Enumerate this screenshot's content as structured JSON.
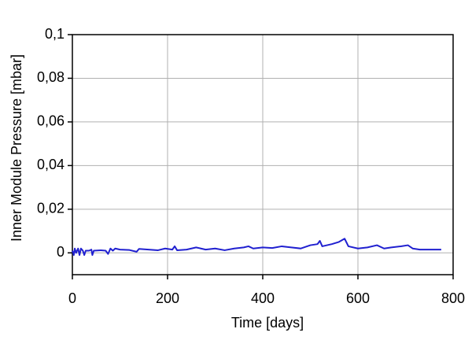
{
  "chart_data": {
    "type": "line",
    "xlabel": "Time [days]",
    "ylabel": "Inner Module Pressure [mbar]",
    "x": [
      0,
      3,
      5,
      8,
      12,
      15,
      18,
      22,
      25,
      28,
      35,
      40,
      42,
      45,
      60,
      70,
      75,
      80,
      85,
      90,
      100,
      120,
      135,
      140,
      160,
      180,
      195,
      210,
      215,
      220,
      240,
      260,
      280,
      300,
      320,
      340,
      360,
      370,
      380,
      400,
      420,
      440,
      460,
      480,
      500,
      515,
      520,
      525,
      545,
      560,
      572,
      580,
      600,
      620,
      640,
      655,
      670,
      690,
      705,
      715,
      730,
      775
    ],
    "series": [
      {
        "color": "#2020d0",
        "values": [
          0.001,
          -0.001,
          0.002,
          0,
          0.002,
          -0.001,
          0.002,
          0.001,
          -0.001,
          0.001,
          0.001,
          0.0015,
          -0.001,
          0.001,
          0.0012,
          0.001,
          -0.0005,
          0.002,
          0.001,
          0.002,
          0.0015,
          0.0013,
          0.0005,
          0.0018,
          0.0015,
          0.0012,
          0.002,
          0.0015,
          0.003,
          0.0012,
          0.0015,
          0.0025,
          0.0015,
          0.002,
          0.0012,
          0.002,
          0.0025,
          0.003,
          0.002,
          0.0025,
          0.0022,
          0.003,
          0.0025,
          0.002,
          0.0035,
          0.004,
          0.0055,
          0.003,
          0.004,
          0.005,
          0.0065,
          0.003,
          0.002,
          0.0025,
          0.0035,
          0.002,
          0.0025,
          0.003,
          0.0035,
          0.002,
          0.0015,
          0.0015
        ]
      }
    ],
    "xlim": [
      0,
      800
    ],
    "xticks": [
      0,
      200,
      400,
      600,
      800
    ],
    "ylim": [
      -0.01,
      0.1
    ],
    "yticks": [
      0,
      {
        "value": 0.02,
        "label": "0,02"
      },
      {
        "value": 0.04,
        "label": "0,04"
      },
      {
        "value": 0.06,
        "label": "0,06"
      },
      {
        "value": 0.08,
        "label": "0,08"
      },
      {
        "value": 0.1,
        "label": "0,1"
      }
    ],
    "grid": true
  }
}
